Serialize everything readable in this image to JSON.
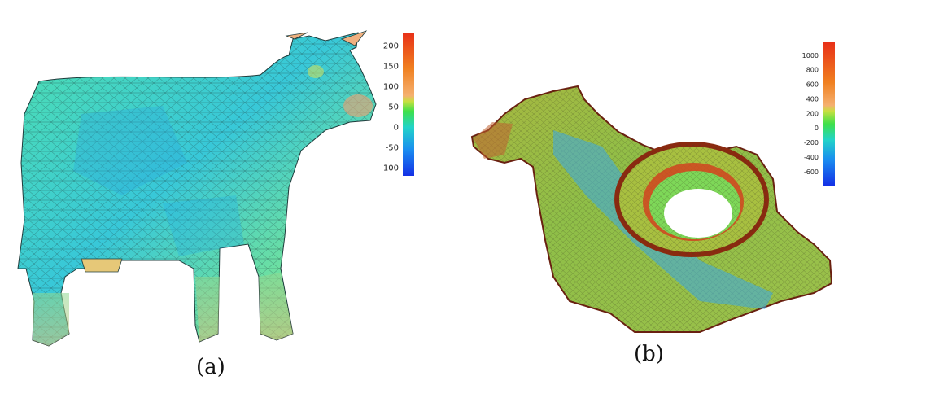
{
  "figure": {
    "panel_a": {
      "caption": "(a)",
      "model": "cow-mesh-icon",
      "colorbar_ticks": [
        "200",
        "150",
        "100",
        "50",
        "0",
        "-50",
        "-100"
      ]
    },
    "panel_b": {
      "caption": "(b)",
      "model": "rocker-arm-mesh-icon",
      "colorbar_ticks": [
        "1000",
        "800",
        "600",
        "400",
        "200",
        "0",
        "-200",
        "-400",
        "-600"
      ]
    },
    "colormap": [
      "#1430e6",
      "#1a8cf0",
      "#22d4c8",
      "#3ee04a",
      "#c8e040",
      "#f5b070",
      "#f08020",
      "#e83018"
    ]
  }
}
